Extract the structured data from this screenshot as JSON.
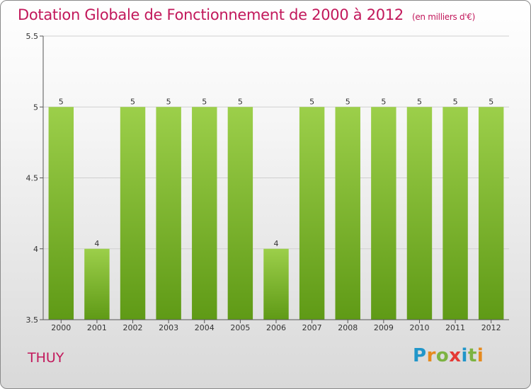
{
  "title": "Dotation Globale de Fonctionnement de 2000 à 2012",
  "subtitle": "(en milliers d'€)",
  "place": "THUY",
  "logo": {
    "p": "P",
    "r": "r",
    "o": "o",
    "x": "x",
    "i1": "i",
    "t": "t",
    "i2": "i"
  },
  "colors": {
    "bar_top": "#9ccf4a",
    "bar_bottom": "#5f9a16",
    "title": "#c2185b"
  },
  "chart_data": {
    "type": "bar",
    "title": "Dotation Globale de Fonctionnement de 2000 à 2012",
    "subtitle": "(en milliers d'€)",
    "xlabel": "",
    "ylabel": "",
    "categories": [
      "2000",
      "2001",
      "2002",
      "2003",
      "2004",
      "2005",
      "2006",
      "2007",
      "2008",
      "2009",
      "2010",
      "2011",
      "2012"
    ],
    "values": [
      5,
      4,
      5,
      5,
      5,
      5,
      4,
      5,
      5,
      5,
      5,
      5,
      5
    ],
    "data_labels": [
      "5",
      "4",
      "5",
      "5",
      "5",
      "5",
      "4",
      "5",
      "5",
      "5",
      "5",
      "5",
      "5"
    ],
    "ylim": [
      3.5,
      5.5
    ],
    "yticks": [
      3.5,
      4,
      4.5,
      5,
      5.5
    ],
    "ytick_labels": [
      "3.5",
      "4",
      "4.5",
      "5",
      "5.5"
    ],
    "grid": true
  }
}
